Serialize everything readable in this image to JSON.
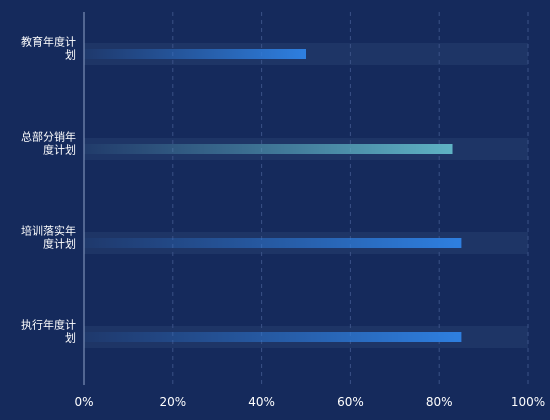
{
  "chart_data": {
    "type": "bar",
    "orientation": "horizontal",
    "categories": [
      "教育年度计划",
      "总部分销年度计划",
      "培训落实年度计划",
      "执行年度计划"
    ],
    "category_label_lines": [
      [
        "教育年度计",
        "划"
      ],
      [
        "总部分销年",
        "度计划"
      ],
      [
        "培训落实年",
        "度计划"
      ],
      [
        "执行年度计",
        "划"
      ]
    ],
    "values": [
      50,
      83,
      85,
      85
    ],
    "xlim": [
      0,
      100
    ],
    "x_ticks": [
      "0%",
      "20%",
      "40%",
      "60%",
      "80%",
      "100%"
    ],
    "grid": true,
    "bar_colors": [
      "#2e7fe0",
      "#5fb3c4",
      "#2e7fe0",
      "#2e7fe0"
    ],
    "background_color": "#152a5c",
    "track_color": "#1e3566",
    "gridline_color": "#3a5186",
    "axis_color": "#8fa3c8"
  }
}
